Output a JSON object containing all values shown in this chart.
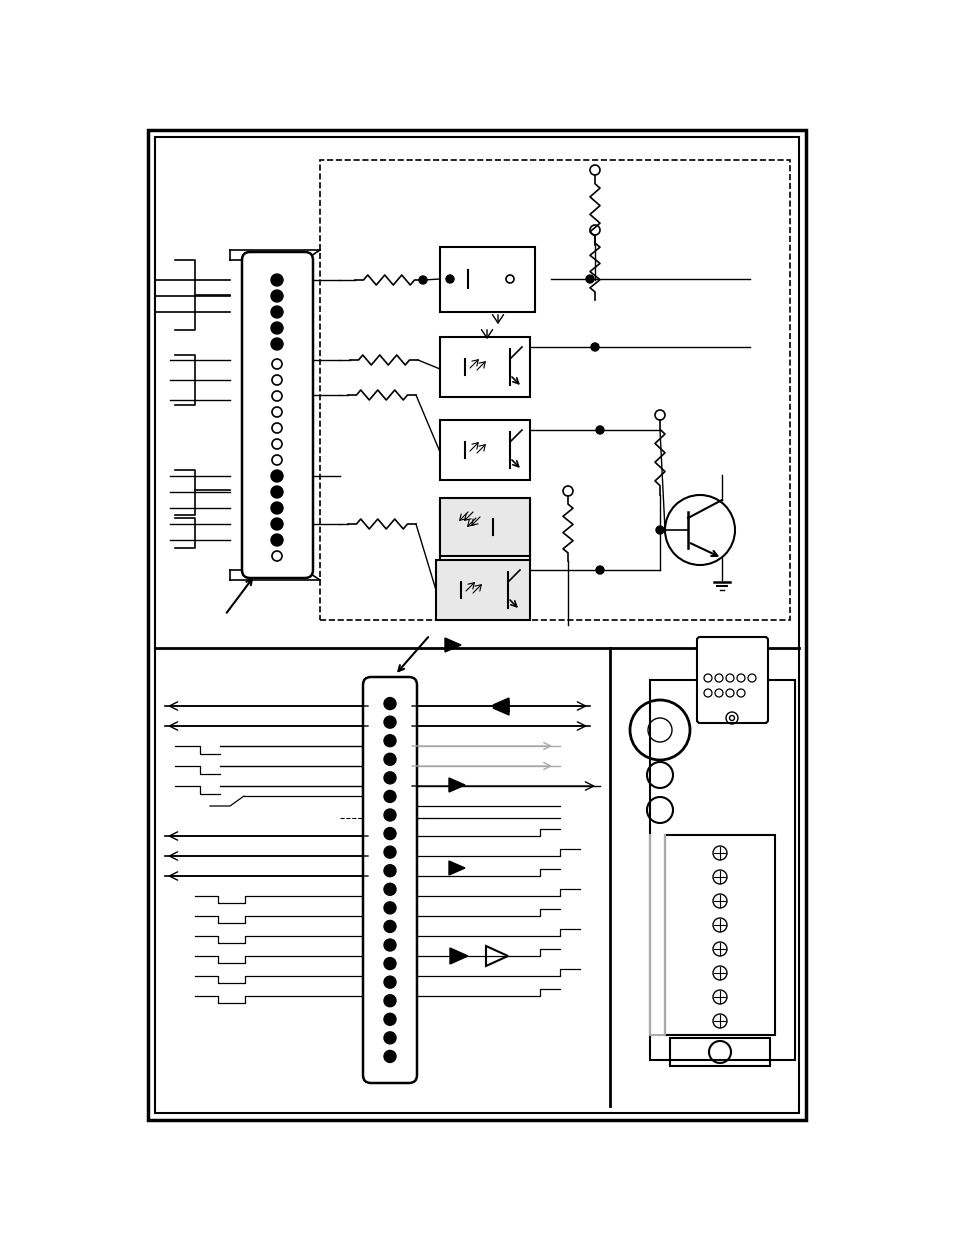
{
  "bg_color": "#ffffff",
  "lc": "#000000",
  "gc": "#aaaaaa",
  "figsize": [
    9.54,
    12.35
  ],
  "dpi": 100
}
